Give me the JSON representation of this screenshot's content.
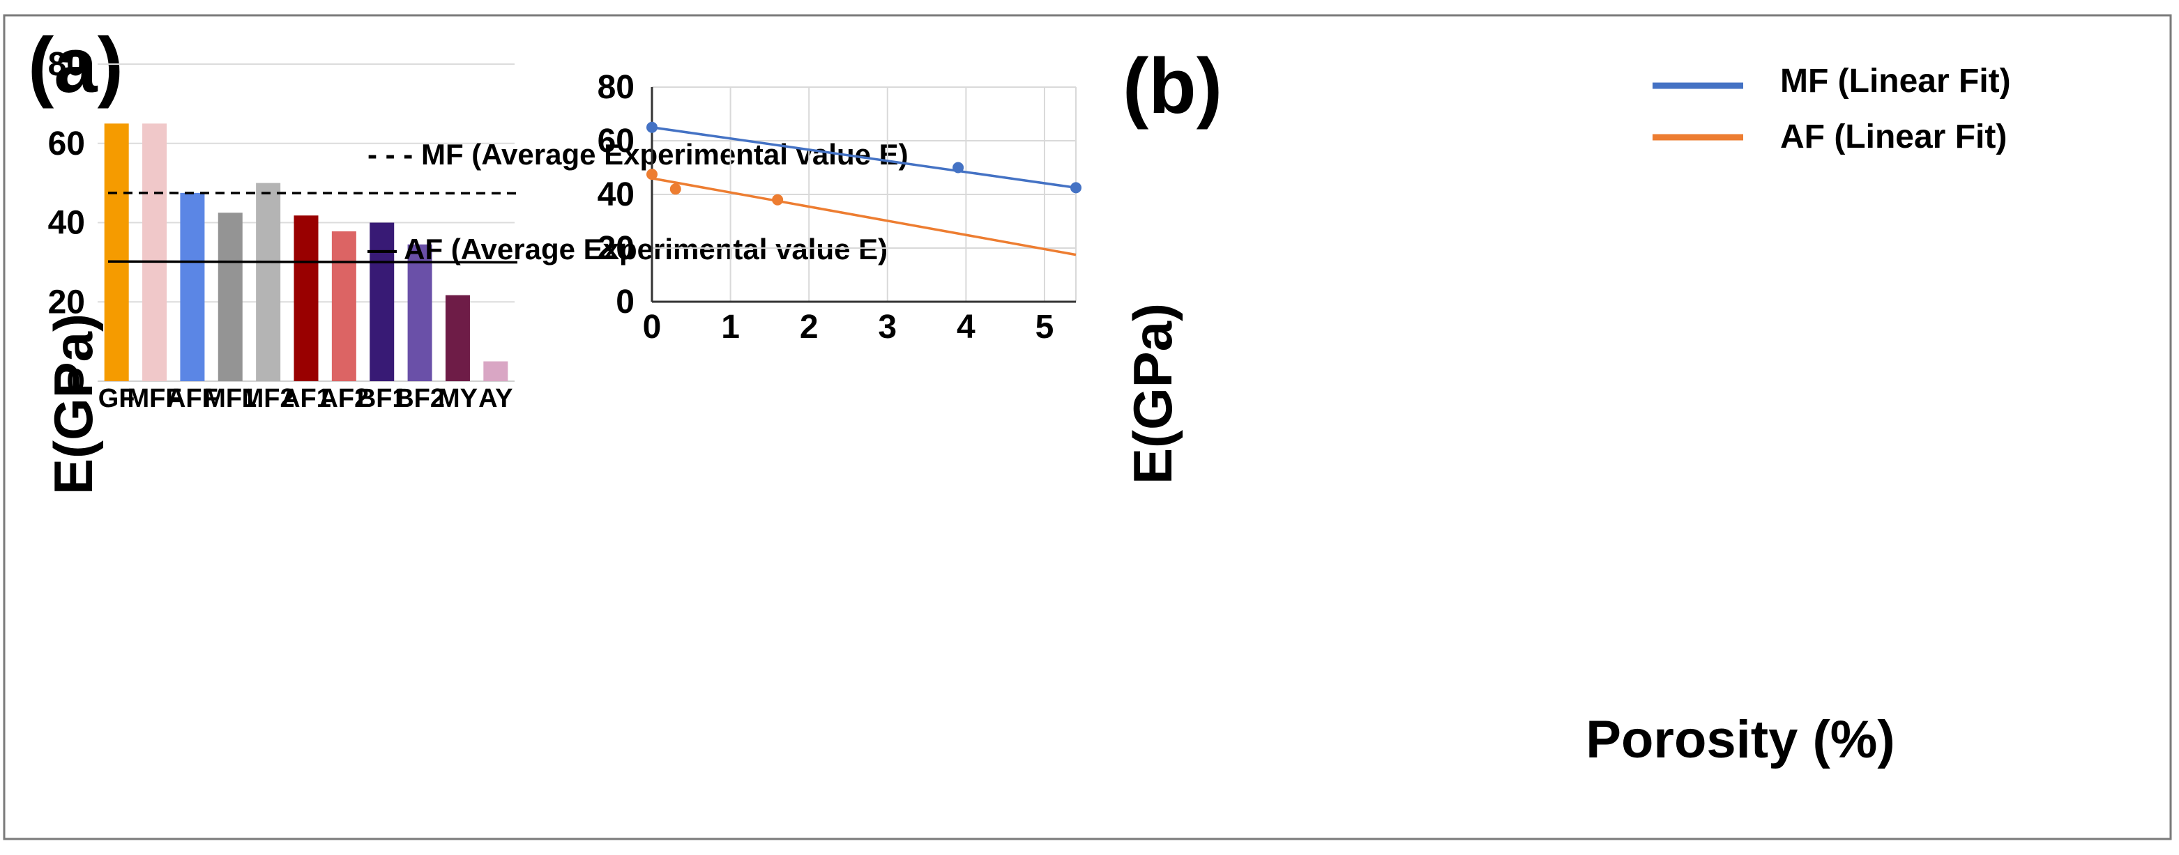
{
  "chart_data": [
    {
      "panel_label": "(a)",
      "type": "bar",
      "ylabel": "E(GPa)",
      "xlabel": "",
      "ylim": [
        0,
        80
      ],
      "yticks": [
        "0",
        "20",
        "40",
        "60",
        "80"
      ],
      "categories": [
        "GF",
        "MFF",
        "AFF",
        "MF1",
        "MF2",
        "AF1",
        "AF2",
        "BF1",
        "BF2",
        "MY",
        "AY"
      ],
      "values": [
        65,
        65,
        47.5,
        42.5,
        50,
        41.8,
        37.8,
        40,
        34.5,
        21.7,
        5
      ],
      "bar_colors": [
        "#F59B00",
        "#F0C8C9",
        "#5B86E5",
        "#949494",
        "#B4B4B4",
        "#990000",
        "#DC6464",
        "#381A75",
        "#6A50A8",
        "#6E1C47",
        "#D9A6C4"
      ],
      "reference_lines": [
        {
          "name": "MF (Average Experimental value E)",
          "value": 47.5,
          "style": "dashed",
          "legend_text": "- - - MF (Average Experimental value E)"
        },
        {
          "name": "AF (Average Experimental value E)",
          "value": 30.2,
          "style": "solid",
          "legend_text": "— AF (Average Experimental value E)"
        }
      ],
      "legend_position": "top-right",
      "grid": true
    },
    {
      "panel_label": "(b)",
      "type": "scatter",
      "xlabel": "Porosity (%)",
      "ylabel": "E(GPa)",
      "xlim": [
        0,
        5.4
      ],
      "ylim": [
        0,
        80
      ],
      "xticks": [
        "0",
        "1",
        "2",
        "3",
        "4",
        "5"
      ],
      "yticks": [
        "0",
        "20",
        "40",
        "60",
        "80"
      ],
      "series": [
        {
          "name": "MF (Linear Fit)",
          "color": "#4472C4",
          "points": [
            [
              0,
              65
            ],
            [
              3.9,
              50
            ],
            [
              5.4,
              42.5
            ]
          ],
          "fit": {
            "x": [
              0,
              5.4
            ],
            "y": [
              65,
              42.5
            ]
          }
        },
        {
          "name": "AF (Linear Fit)",
          "color": "#ED7D31",
          "points": [
            [
              0,
              47.5
            ],
            [
              0.3,
              42
            ],
            [
              1.6,
              38
            ]
          ],
          "fit": {
            "x": [
              0,
              5.4
            ],
            "y": [
              46,
              17.5
            ]
          }
        }
      ],
      "legend_position": "top-right",
      "grid": true
    }
  ]
}
